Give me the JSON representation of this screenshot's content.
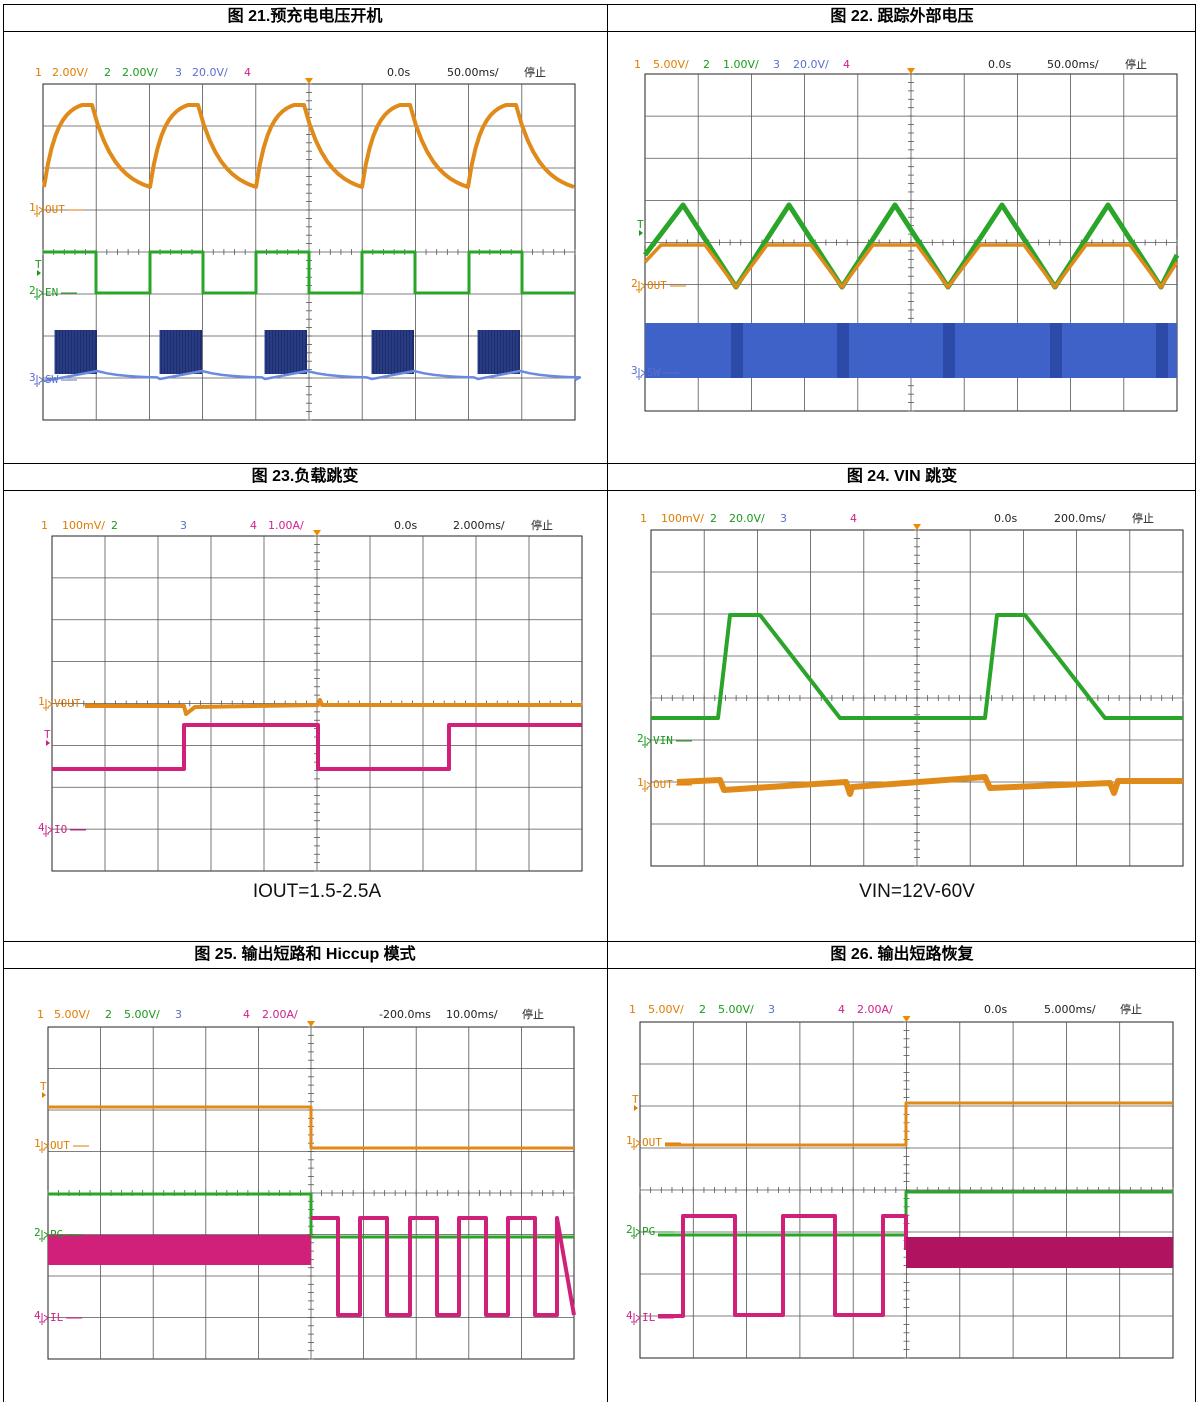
{
  "figures": [
    {
      "title": "图 21.预充电电压开机",
      "scope": {
        "header": [
          {
            "text": "1",
            "color": "#e07b00"
          },
          {
            "text": "2.00V/",
            "color": "#e07b00"
          },
          {
            "text": "2",
            "color": "#1a9a1a"
          },
          {
            "text": "2.00V/",
            "color": "#1a9a1a"
          },
          {
            "text": "3",
            "color": "#5a6fd0"
          },
          {
            "text": "20.0V/",
            "color": "#5a6fd0"
          },
          {
            "text": "4",
            "color": "#d0208a"
          },
          {
            "text": "0.0s",
            "color": "#222222"
          },
          {
            "text": "50.00ms/",
            "color": "#222222"
          },
          {
            "text": "停止",
            "color": "#222222"
          }
        ],
        "labels": [
          {
            "channel": "1",
            "text": "OUT",
            "color": "#e07b00"
          },
          {
            "channel": "2",
            "text": "EN",
            "color": "#1a9a1a"
          },
          {
            "channel": "3",
            "text": "SW",
            "color": "#5a6fd0"
          }
        ],
        "trigger": {
          "text": "T",
          "color": "#1a9a1a"
        }
      }
    },
    {
      "title": "图 22. 跟踪外部电压",
      "scope": {
        "header": [
          {
            "text": "1",
            "color": "#e07b00"
          },
          {
            "text": "5.00V/",
            "color": "#e07b00"
          },
          {
            "text": "2",
            "color": "#1a9a1a"
          },
          {
            "text": "1.00V/",
            "color": "#1a9a1a"
          },
          {
            "text": "3",
            "color": "#5a6fd0"
          },
          {
            "text": "20.0V/",
            "color": "#5a6fd0"
          },
          {
            "text": "4",
            "color": "#d0208a"
          },
          {
            "text": "0.0s",
            "color": "#222222"
          },
          {
            "text": "50.00ms/",
            "color": "#222222"
          },
          {
            "text": "停止",
            "color": "#222222"
          }
        ],
        "labels": [
          {
            "channel": "2",
            "text": "OUT",
            "color": "#e07b00"
          },
          {
            "channel": "3",
            "text": "SW",
            "color": "#5a6fd0"
          }
        ],
        "trigger": {
          "text": "T",
          "color": "#1a9a1a"
        }
      }
    },
    {
      "title": "图 23.负载跳变",
      "scope": {
        "header": [
          {
            "text": "1",
            "color": "#e07b00"
          },
          {
            "text": "100mV/",
            "color": "#e07b00"
          },
          {
            "text": "2",
            "color": "#1a9a1a"
          },
          {
            "text": "3",
            "color": "#5a6fd0"
          },
          {
            "text": "4",
            "color": "#d0208a"
          },
          {
            "text": "1.00A/",
            "color": "#d0208a"
          },
          {
            "text": "0.0s",
            "color": "#222222"
          },
          {
            "text": "2.000ms/",
            "color": "#222222"
          },
          {
            "text": "停止",
            "color": "#222222"
          }
        ],
        "labels": [
          {
            "channel": "1",
            "text": "VOUT",
            "color": "#e07b00"
          },
          {
            "channel": "4",
            "text": "IO",
            "color": "#d0208a"
          }
        ],
        "trigger": {
          "text": "T",
          "color": "#d0208a"
        }
      },
      "caption": "IOUT=1.5-2.5A"
    },
    {
      "title": "图 24. VIN 跳变",
      "scope": {
        "header": [
          {
            "text": "1",
            "color": "#e07b00"
          },
          {
            "text": "100mV/",
            "color": "#e07b00"
          },
          {
            "text": "2",
            "color": "#1a9a1a"
          },
          {
            "text": "20.0V/",
            "color": "#1a9a1a"
          },
          {
            "text": "3",
            "color": "#5a6fd0"
          },
          {
            "text": "4",
            "color": "#d0208a"
          },
          {
            "text": "0.0s",
            "color": "#222222"
          },
          {
            "text": "200.0ms/",
            "color": "#222222"
          },
          {
            "text": "停止",
            "color": "#222222"
          }
        ],
        "labels": [
          {
            "channel": "2",
            "text": "VIN",
            "color": "#1a9a1a"
          },
          {
            "channel": "1",
            "text": "OUT",
            "color": "#e07b00"
          }
        ]
      },
      "caption": "VIN=12V-60V"
    },
    {
      "title": "图 25. 输出短路和 Hiccup 模式",
      "scope": {
        "header": [
          {
            "text": "1",
            "color": "#e07b00"
          },
          {
            "text": "5.00V/",
            "color": "#e07b00"
          },
          {
            "text": "2",
            "color": "#1a9a1a"
          },
          {
            "text": "5.00V/",
            "color": "#1a9a1a"
          },
          {
            "text": "3",
            "color": "#5a6fd0"
          },
          {
            "text": "4",
            "color": "#d0208a"
          },
          {
            "text": "2.00A/",
            "color": "#d0208a"
          },
          {
            "text": "-200.0ms",
            "color": "#222222"
          },
          {
            "text": "10.00ms/",
            "color": "#222222"
          },
          {
            "text": "停止",
            "color": "#222222"
          }
        ],
        "labels": [
          {
            "channel": "1",
            "text": "OUT",
            "color": "#e07b00"
          },
          {
            "channel": "2",
            "text": "PG",
            "color": "#1a9a1a"
          },
          {
            "channel": "4",
            "text": "IL",
            "color": "#d0208a"
          }
        ],
        "trigger": {
          "text": "T",
          "color": "#e07b00"
        }
      }
    },
    {
      "title": "图 26. 输出短路恢复",
      "scope": {
        "header": [
          {
            "text": "1",
            "color": "#e07b00"
          },
          {
            "text": "5.00V/",
            "color": "#e07b00"
          },
          {
            "text": "2",
            "color": "#1a9a1a"
          },
          {
            "text": "5.00V/",
            "color": "#1a9a1a"
          },
          {
            "text": "3",
            "color": "#5a6fd0"
          },
          {
            "text": "4",
            "color": "#d0208a"
          },
          {
            "text": "2.00A/",
            "color": "#d0208a"
          },
          {
            "text": "0.0s",
            "color": "#222222"
          },
          {
            "text": "5.000ms/",
            "color": "#222222"
          },
          {
            "text": "停止",
            "color": "#222222"
          }
        ],
        "labels": [
          {
            "channel": "1",
            "text": "OUT",
            "color": "#e07b00"
          },
          {
            "channel": "2",
            "text": "PG",
            "color": "#1a9a1a"
          },
          {
            "channel": "4",
            "text": "IL",
            "color": "#d0208a"
          }
        ],
        "trigger": {
          "text": "T",
          "color": "#e07b00"
        }
      }
    }
  ]
}
